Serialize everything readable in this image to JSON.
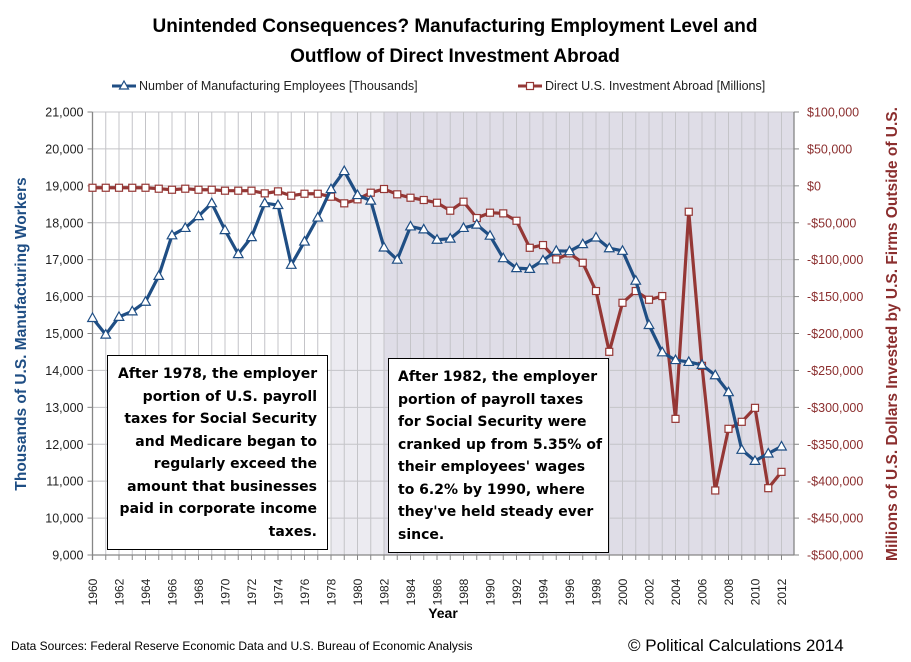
{
  "chart_data": {
    "type": "line",
    "title": [
      "Unintended Consequences?  Manufacturing Employment Level and",
      "Outflow of Direct Investment Abroad"
    ],
    "xlabel": "Year",
    "ylabel_left": "Thousands of U.S. Manufacturing Workers",
    "ylabel_right": "Millions of U.S. Dollars Invested by U.S. Firms Outside of U.S.",
    "x": [
      1960,
      1961,
      1962,
      1963,
      1964,
      1965,
      1966,
      1967,
      1968,
      1969,
      1970,
      1971,
      1972,
      1973,
      1974,
      1975,
      1976,
      1977,
      1978,
      1979,
      1980,
      1981,
      1982,
      1983,
      1984,
      1985,
      1986,
      1987,
      1988,
      1989,
      1990,
      1991,
      1992,
      1993,
      1994,
      1995,
      1996,
      1997,
      1998,
      1999,
      2000,
      2001,
      2002,
      2003,
      2004,
      2005,
      2006,
      2007,
      2008,
      2009,
      2010,
      2011,
      2012
    ],
    "x_tick_labels": [
      "1960",
      "1962",
      "1964",
      "1966",
      "1968",
      "1970",
      "1972",
      "1974",
      "1976",
      "1978",
      "1980",
      "1982",
      "1984",
      "1986",
      "1988",
      "1990",
      "1992",
      "1994",
      "1996",
      "1998",
      "2000",
      "2002",
      "2004",
      "2006",
      "2008",
      "2010",
      "2012"
    ],
    "ylim_left": [
      9000,
      21000
    ],
    "yticks_left": [
      "21,000",
      "20,000",
      "19,000",
      "18,000",
      "17,000",
      "16,000",
      "15,000",
      "14,000",
      "13,000",
      "12,000",
      "11,000",
      "10,000",
      "9,000"
    ],
    "ylim_right": [
      -500000,
      100000
    ],
    "yticks_right": [
      "$100,000",
      "$50,000",
      "$0",
      "-$50,000",
      "-$100,000",
      "-$150,000",
      "-$200,000",
      "-$250,000",
      "-$300,000",
      "-$350,000",
      "-$400,000",
      "-$450,000",
      "-$500,000"
    ],
    "grid": true,
    "legend_position": "top-center",
    "series": [
      {
        "name": "Number of Manufacturing Employees [Thousands]",
        "axis": "left",
        "color": "#1f4e84",
        "marker": "triangle",
        "values": [
          15420,
          14970,
          15450,
          15600,
          15860,
          16560,
          17660,
          17860,
          18180,
          18530,
          17800,
          17150,
          17610,
          18530,
          18480,
          16860,
          17490,
          18140,
          18910,
          19400,
          18750,
          18600,
          17330,
          17000,
          17900,
          17820,
          17540,
          17570,
          17860,
          17950,
          17650,
          17040,
          16770,
          16750,
          16980,
          17240,
          17230,
          17420,
          17600,
          17310,
          17240,
          16430,
          15230,
          14490,
          14280,
          14230,
          14150,
          13870,
          13410,
          11850,
          11550,
          11750,
          11940
        ]
      },
      {
        "name": "Direct U.S. Investment Abroad [Millions]",
        "axis": "right",
        "color": "#953735",
        "marker": "square",
        "values": [
          -2600,
          -2600,
          -2600,
          -2600,
          -2600,
          -3900,
          -5300,
          -3900,
          -5300,
          -5300,
          -6600,
          -6600,
          -6600,
          -10200,
          -7500,
          -13400,
          -10700,
          -10700,
          -14700,
          -23700,
          -18300,
          -9300,
          -4300,
          -11500,
          -16100,
          -19200,
          -22900,
          -33700,
          -21500,
          -43600,
          -36400,
          -37300,
          -47300,
          -83900,
          -80200,
          -99600,
          -91500,
          -104200,
          -142500,
          -224800,
          -158400,
          -142500,
          -154300,
          -149300,
          -315600,
          -35100,
          -243800,
          -412600,
          -329100,
          -319600,
          -300700,
          -409500,
          -387400
        ]
      }
    ],
    "shaded_regions": [
      {
        "from": 1978,
        "to": 1982,
        "color": "#ecebf1"
      },
      {
        "from": 1982,
        "to": 2013,
        "color": "#dfdde7"
      }
    ],
    "annotations": [
      {
        "anchor_year": 1978,
        "lines": [
          "After 1978, the employer",
          "portion of U.S. payroll",
          "taxes for Social Security",
          "and Medicare began to",
          "regularly exceed the",
          "amount that businesses",
          "paid in corporate income",
          "taxes."
        ]
      },
      {
        "anchor_year": 1982,
        "lines": [
          "After 1982, the employer",
          "portion of payroll taxes",
          "for Social Security were",
          "cranked up  from 5.35% of",
          "their employees' wages",
          "to 6.2% by 1990, where",
          "they've held steady ever",
          "since."
        ]
      }
    ]
  },
  "footer": {
    "source": "Data Sources: Federal Reserve Economic Data and U.S. Bureau of Economic Analysis",
    "credit": "© Political Calculations 2014"
  }
}
